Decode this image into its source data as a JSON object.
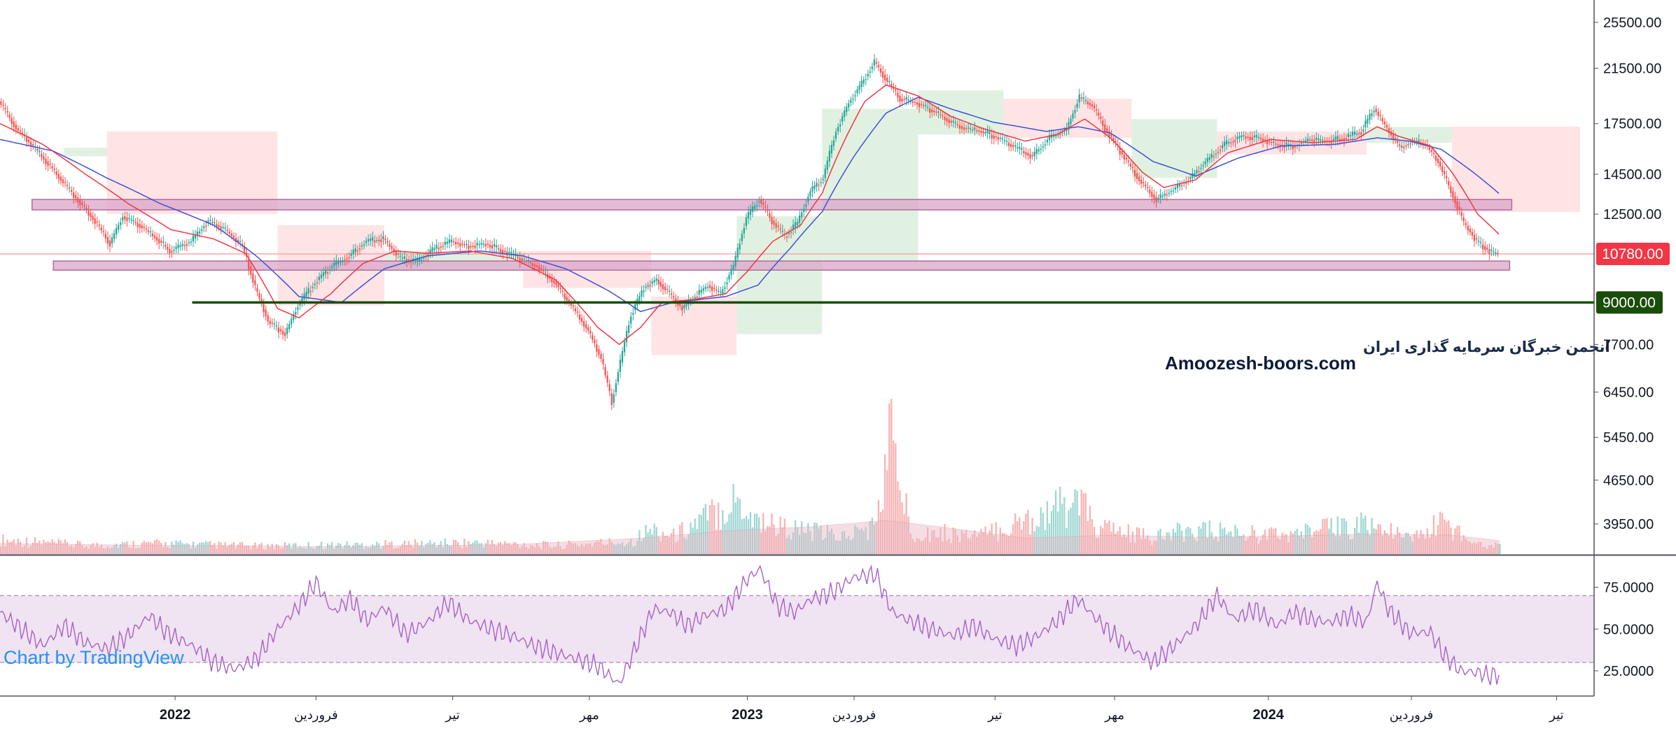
{
  "chart_data": {
    "type": "candlestick",
    "price_axis": {
      "ticks": [
        3950,
        4650,
        5450,
        6450,
        7700,
        9000,
        10780,
        12500,
        14500,
        17500,
        21500,
        25500
      ],
      "tick_labels": [
        "3950.00",
        "4650.00",
        "5450.00",
        "6450.00",
        "7700.00",
        "9000.00",
        "10780.00",
        "12500.00",
        "14500.00",
        "17500.00",
        "21500.00",
        "25500.00"
      ],
      "last_price": 10780,
      "last_price_label": "10780.00",
      "last_price_color": "#f23645",
      "level_label": "9000.00",
      "level_color": "#1b4d0a",
      "scale": "log"
    },
    "time_axis": {
      "labels": [
        {
          "text": "2022",
          "bold": true
        },
        {
          "text": "فروردین",
          "bold": false
        },
        {
          "text": "تیر",
          "bold": false
        },
        {
          "text": "مهر",
          "bold": false
        },
        {
          "text": "2023",
          "bold": true
        },
        {
          "text": "فروردین",
          "bold": false
        },
        {
          "text": "تیر",
          "bold": false
        },
        {
          "text": "مهر",
          "bold": false
        },
        {
          "text": "2024",
          "bold": true
        },
        {
          "text": "فروردین",
          "bold": false
        },
        {
          "text": "تیر",
          "bold": false
        }
      ]
    },
    "price_path": [
      [
        0,
        19000
      ],
      [
        8,
        17200
      ],
      [
        20,
        15500
      ],
      [
        32,
        13800
      ],
      [
        44,
        12300
      ],
      [
        52,
        11200
      ],
      [
        58,
        12400
      ],
      [
        66,
        12000
      ],
      [
        74,
        11400
      ],
      [
        80,
        10900
      ],
      [
        90,
        11300
      ],
      [
        98,
        12200
      ],
      [
        106,
        11800
      ],
      [
        114,
        11100
      ],
      [
        120,
        9500
      ],
      [
        126,
        8400
      ],
      [
        134,
        8000
      ],
      [
        140,
        8900
      ],
      [
        148,
        9700
      ],
      [
        156,
        10300
      ],
      [
        164,
        10700
      ],
      [
        172,
        11300
      ],
      [
        180,
        11400
      ],
      [
        188,
        10600
      ],
      [
        196,
        10500
      ],
      [
        204,
        11000
      ],
      [
        212,
        11300
      ],
      [
        220,
        11100
      ],
      [
        228,
        11200
      ],
      [
        236,
        10900
      ],
      [
        244,
        10600
      ],
      [
        252,
        10300
      ],
      [
        260,
        9700
      ],
      [
        268,
        8900
      ],
      [
        276,
        8100
      ],
      [
        282,
        7300
      ],
      [
        287,
        6200
      ],
      [
        291,
        7200
      ],
      [
        296,
        8600
      ],
      [
        302,
        9500
      ],
      [
        308,
        9800
      ],
      [
        314,
        9300
      ],
      [
        320,
        8800
      ],
      [
        326,
        9200
      ],
      [
        332,
        9600
      ],
      [
        338,
        9300
      ],
      [
        344,
        10300
      ],
      [
        350,
        12300
      ],
      [
        356,
        13200
      ],
      [
        362,
        12200
      ],
      [
        368,
        11500
      ],
      [
        374,
        12100
      ],
      [
        380,
        13600
      ],
      [
        386,
        14300
      ],
      [
        392,
        17000
      ],
      [
        398,
        18900
      ],
      [
        404,
        20300
      ],
      [
        410,
        22000
      ],
      [
        416,
        20500
      ],
      [
        422,
        19200
      ],
      [
        430,
        18900
      ],
      [
        438,
        18300
      ],
      [
        446,
        17600
      ],
      [
        452,
        17200
      ],
      [
        460,
        17000
      ],
      [
        468,
        16600
      ],
      [
        476,
        16000
      ],
      [
        484,
        15500
      ],
      [
        492,
        16600
      ],
      [
        500,
        17100
      ],
      [
        506,
        19300
      ],
      [
        512,
        18700
      ],
      [
        518,
        17200
      ],
      [
        526,
        15600
      ],
      [
        534,
        14200
      ],
      [
        542,
        13200
      ],
      [
        550,
        13700
      ],
      [
        558,
        14300
      ],
      [
        566,
        15300
      ],
      [
        574,
        16200
      ],
      [
        582,
        16700
      ],
      [
        590,
        16600
      ],
      [
        598,
        16200
      ],
      [
        606,
        16100
      ],
      [
        614,
        16500
      ],
      [
        622,
        16400
      ],
      [
        630,
        16600
      ],
      [
        638,
        17000
      ],
      [
        644,
        18500
      ],
      [
        650,
        17200
      ],
      [
        656,
        16000
      ],
      [
        662,
        16400
      ],
      [
        668,
        16200
      ],
      [
        674,
        15200
      ],
      [
        680,
        13600
      ],
      [
        686,
        12100
      ],
      [
        692,
        11300
      ],
      [
        698,
        10900
      ],
      [
        702,
        10780
      ]
    ],
    "ma_fast": [
      [
        0,
        17500
      ],
      [
        20,
        16200
      ],
      [
        40,
        14500
      ],
      [
        60,
        13000
      ],
      [
        80,
        11800
      ],
      [
        100,
        11400
      ],
      [
        115,
        10800
      ],
      [
        130,
        8800
      ],
      [
        140,
        8500
      ],
      [
        155,
        9300
      ],
      [
        170,
        10400
      ],
      [
        185,
        10900
      ],
      [
        200,
        10800
      ],
      [
        220,
        10900
      ],
      [
        240,
        10600
      ],
      [
        260,
        9800
      ],
      [
        280,
        8200
      ],
      [
        290,
        7700
      ],
      [
        300,
        8200
      ],
      [
        310,
        9000
      ],
      [
        325,
        9100
      ],
      [
        340,
        9300
      ],
      [
        350,
        10100
      ],
      [
        362,
        11300
      ],
      [
        375,
        12000
      ],
      [
        385,
        13500
      ],
      [
        395,
        16300
      ],
      [
        405,
        19000
      ],
      [
        415,
        20200
      ],
      [
        430,
        19400
      ],
      [
        445,
        18000
      ],
      [
        460,
        17200
      ],
      [
        480,
        16400
      ],
      [
        495,
        16800
      ],
      [
        508,
        17800
      ],
      [
        520,
        16600
      ],
      [
        535,
        14600
      ],
      [
        545,
        13800
      ],
      [
        560,
        14200
      ],
      [
        575,
        15700
      ],
      [
        595,
        16500
      ],
      [
        615,
        16300
      ],
      [
        635,
        16500
      ],
      [
        645,
        17300
      ],
      [
        655,
        16700
      ],
      [
        670,
        16100
      ],
      [
        680,
        14600
      ],
      [
        692,
        12500
      ],
      [
        702,
        11600
      ]
    ],
    "ma_slow": [
      [
        0,
        16500
      ],
      [
        25,
        15800
      ],
      [
        50,
        14300
      ],
      [
        75,
        13000
      ],
      [
        100,
        12000
      ],
      [
        120,
        10700
      ],
      [
        140,
        9200
      ],
      [
        160,
        9000
      ],
      [
        180,
        10200
      ],
      [
        200,
        10700
      ],
      [
        225,
        10900
      ],
      [
        245,
        10700
      ],
      [
        265,
        10200
      ],
      [
        285,
        9400
      ],
      [
        300,
        8700
      ],
      [
        315,
        9000
      ],
      [
        340,
        9200
      ],
      [
        355,
        9600
      ],
      [
        370,
        11000
      ],
      [
        385,
        12600
      ],
      [
        400,
        15500
      ],
      [
        415,
        18200
      ],
      [
        430,
        19300
      ],
      [
        445,
        18500
      ],
      [
        465,
        17600
      ],
      [
        490,
        17000
      ],
      [
        505,
        17300
      ],
      [
        520,
        16900
      ],
      [
        540,
        15200
      ],
      [
        560,
        14400
      ],
      [
        580,
        15400
      ],
      [
        600,
        16100
      ],
      [
        625,
        16200
      ],
      [
        645,
        16600
      ],
      [
        660,
        16400
      ],
      [
        675,
        15900
      ],
      [
        690,
        14600
      ],
      [
        702,
        13500
      ]
    ],
    "ichimoku_cloud": [
      {
        "from": 30,
        "to": 50,
        "top": 16000,
        "bottom": 15500,
        "color": "green"
      },
      {
        "from": 50,
        "to": 130,
        "top": 17000,
        "bottom": 12500,
        "color": "red"
      },
      {
        "from": 130,
        "to": 180,
        "top": 12000,
        "bottom": 8900,
        "color": "red"
      },
      {
        "from": 180,
        "to": 245,
        "top": 10900,
        "bottom": 10200,
        "color": "green"
      },
      {
        "from": 245,
        "to": 305,
        "top": 10900,
        "bottom": 9500,
        "color": "red"
      },
      {
        "from": 305,
        "to": 345,
        "top": 9200,
        "bottom": 7400,
        "color": "red"
      },
      {
        "from": 345,
        "to": 385,
        "top": 12400,
        "bottom": 8000,
        "color": "green"
      },
      {
        "from": 385,
        "to": 430,
        "top": 18500,
        "bottom": 10500,
        "color": "green"
      },
      {
        "from": 430,
        "to": 470,
        "top": 19800,
        "bottom": 16800,
        "color": "green"
      },
      {
        "from": 470,
        "to": 530,
        "top": 19200,
        "bottom": 16600,
        "color": "red"
      },
      {
        "from": 530,
        "to": 570,
        "top": 17800,
        "bottom": 14300,
        "color": "green"
      },
      {
        "from": 570,
        "to": 640,
        "top": 17000,
        "bottom": 15600,
        "color": "red"
      },
      {
        "from": 640,
        "to": 680,
        "top": 17300,
        "bottom": 16300,
        "color": "green"
      },
      {
        "from": 680,
        "to": 740,
        "top": 17300,
        "bottom": 12600,
        "color": "red"
      }
    ],
    "zones": [
      {
        "from": 15,
        "to": 708,
        "top": 13200,
        "bottom": 12700
      },
      {
        "from": 25,
        "to": 707,
        "top": 10500,
        "bottom": 10150
      }
    ],
    "support_level": {
      "price": 9000,
      "from": 90,
      "to": 740
    },
    "volume": [
      [
        0,
        2
      ],
      [
        40,
        1.2
      ],
      [
        70,
        1.5
      ],
      [
        120,
        1.1
      ],
      [
        190,
        1.4
      ],
      [
        220,
        1.6
      ],
      [
        260,
        1.2
      ],
      [
        295,
        1.8
      ],
      [
        305,
        3.5
      ],
      [
        315,
        2.5
      ],
      [
        345,
        7.8
      ],
      [
        352,
        5.2
      ],
      [
        368,
        3.6
      ],
      [
        395,
        2.5
      ],
      [
        410,
        4.0
      ],
      [
        417,
        17.5
      ],
      [
        421,
        10.0
      ],
      [
        426,
        3.2
      ],
      [
        460,
        2.6
      ],
      [
        505,
        7.5
      ],
      [
        512,
        3.8
      ],
      [
        540,
        2.2
      ],
      [
        556,
        3.4
      ],
      [
        580,
        3.0
      ],
      [
        600,
        2.6
      ],
      [
        640,
        4.3
      ],
      [
        660,
        2.0
      ],
      [
        675,
        4.5
      ],
      [
        690,
        1.6
      ],
      [
        705,
        1.0
      ]
    ],
    "volume_ma": [
      [
        0,
        1.0
      ],
      [
        80,
        0.8
      ],
      [
        160,
        0.7
      ],
      [
        240,
        0.9
      ],
      [
        300,
        1.5
      ],
      [
        340,
        2.2
      ],
      [
        380,
        2.6
      ],
      [
        415,
        3.2
      ],
      [
        440,
        2.6
      ],
      [
        480,
        1.5
      ],
      [
        520,
        1.8
      ],
      [
        560,
        1.6
      ],
      [
        600,
        1.7
      ],
      [
        640,
        1.9
      ],
      [
        680,
        1.8
      ],
      [
        705,
        1.2
      ]
    ],
    "rsi": {
      "ticks": [
        25,
        50,
        75
      ],
      "tick_labels": [
        "25.0000",
        "50.0000",
        "75.0000"
      ],
      "band": [
        30,
        70
      ],
      "values": [
        [
          0,
          60
        ],
        [
          10,
          50
        ],
        [
          20,
          40
        ],
        [
          30,
          52
        ],
        [
          40,
          42
        ],
        [
          50,
          38
        ],
        [
          60,
          46
        ],
        [
          70,
          58
        ],
        [
          78,
          48
        ],
        [
          90,
          40
        ],
        [
          100,
          30
        ],
        [
          110,
          26
        ],
        [
          120,
          32
        ],
        [
          130,
          50
        ],
        [
          140,
          64
        ],
        [
          148,
          78
        ],
        [
          156,
          60
        ],
        [
          164,
          68
        ],
        [
          172,
          55
        ],
        [
          180,
          63
        ],
        [
          190,
          47
        ],
        [
          200,
          54
        ],
        [
          210,
          66
        ],
        [
          220,
          55
        ],
        [
          230,
          50
        ],
        [
          240,
          46
        ],
        [
          250,
          40
        ],
        [
          260,
          36
        ],
        [
          270,
          32
        ],
        [
          280,
          28
        ],
        [
          290,
          17
        ],
        [
          298,
          40
        ],
        [
          306,
          62
        ],
        [
          314,
          60
        ],
        [
          322,
          52
        ],
        [
          330,
          58
        ],
        [
          340,
          62
        ],
        [
          350,
          80
        ],
        [
          356,
          86
        ],
        [
          364,
          64
        ],
        [
          372,
          60
        ],
        [
          380,
          68
        ],
        [
          390,
          72
        ],
        [
          400,
          81
        ],
        [
          410,
          83
        ],
        [
          418,
          60
        ],
        [
          426,
          55
        ],
        [
          436,
          50
        ],
        [
          446,
          46
        ],
        [
          456,
          52
        ],
        [
          466,
          44
        ],
        [
          476,
          40
        ],
        [
          486,
          46
        ],
        [
          496,
          56
        ],
        [
          505,
          68
        ],
        [
          512,
          58
        ],
        [
          520,
          48
        ],
        [
          530,
          38
        ],
        [
          540,
          30
        ],
        [
          550,
          40
        ],
        [
          560,
          52
        ],
        [
          570,
          70
        ],
        [
          578,
          56
        ],
        [
          588,
          62
        ],
        [
          598,
          52
        ],
        [
          606,
          60
        ],
        [
          614,
          56
        ],
        [
          622,
          54
        ],
        [
          632,
          58
        ],
        [
          640,
          54
        ],
        [
          645,
          78
        ],
        [
          650,
          62
        ],
        [
          660,
          48
        ],
        [
          670,
          48
        ],
        [
          676,
          35
        ],
        [
          684,
          25
        ],
        [
          692,
          24
        ],
        [
          698,
          22
        ],
        [
          702,
          23
        ]
      ]
    }
  },
  "watermark": {
    "persian": "انجمن خبرگان سرمایه گذاری ایران",
    "latin": "Amoozesh-boors.com"
  },
  "credit": "Chart by TradingView",
  "colors": {
    "candle_up": "#26a69a",
    "candle_down": "#ef5350",
    "ma_fast": "#f23645",
    "ma_slow": "#3f51d6",
    "cloud_green": "#c8e6c9",
    "cloud_red": "#ffcdd2",
    "zone_fill": "#d9a5c8",
    "zone_stroke": "#b06b9c",
    "support_line": "#1b4d0a",
    "rsi_line": "#a463c4",
    "rsi_band": "#f0e3f2",
    "last_price_line": "#f7a5ab"
  }
}
